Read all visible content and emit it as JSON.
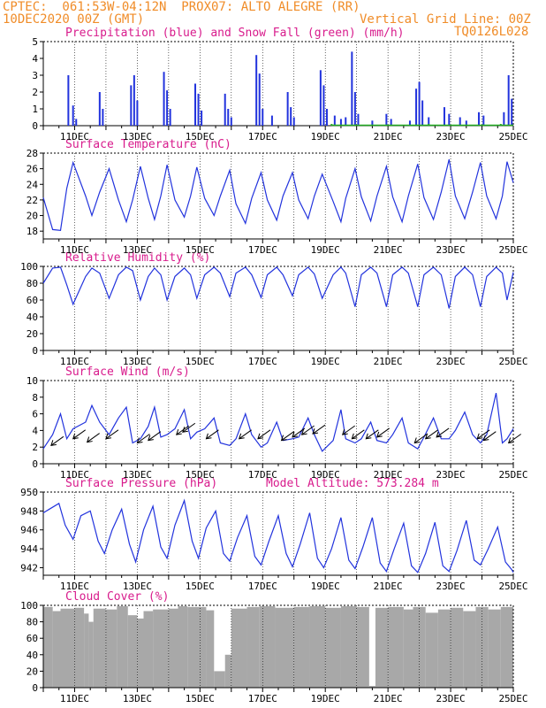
{
  "header": {
    "line1": "CPTEC:  061:53W-04:12N  PROX07: ALTO ALEGRE (RR)",
    "line2": "10DEC2020 00Z (GMT)",
    "grid_note": "Vertical Grid Line: 00Z",
    "code": "TQ0126L028"
  },
  "colors": {
    "header": "#f08c28",
    "title": "#d81b8c",
    "line": "#2233dd",
    "snow": "#22aa22",
    "cloud": "#a8a8a8"
  },
  "x_dates": [
    "11DEC",
    "13DEC",
    "15DEC",
    "17DEC",
    "19DEC",
    "21DEC",
    "23DEC",
    "25DEC"
  ],
  "chart_data": [
    {
      "type": "bar",
      "title": "Precipitation (blue) and Snow Fall (green) (mm/h)",
      "x_unit": "days since 10DEC2020 00Z",
      "ylim": [
        0,
        5
      ],
      "yticks": [
        0,
        1,
        2,
        3,
        4,
        5
      ],
      "series": [
        {
          "name": "Precipitation",
          "points": [
            [
              0.8,
              3.0
            ],
            [
              0.95,
              1.2
            ],
            [
              1.05,
              0.4
            ],
            [
              1.8,
              2.0
            ],
            [
              1.9,
              1.0
            ],
            [
              2.8,
              2.4
            ],
            [
              2.9,
              3.0
            ],
            [
              3.0,
              1.5
            ],
            [
              3.85,
              3.2
            ],
            [
              3.95,
              2.1
            ],
            [
              4.05,
              1.0
            ],
            [
              4.85,
              2.5
            ],
            [
              4.95,
              1.9
            ],
            [
              5.05,
              0.9
            ],
            [
              5.8,
              1.9
            ],
            [
              5.9,
              1.0
            ],
            [
              6.0,
              0.5
            ],
            [
              6.8,
              4.2
            ],
            [
              6.9,
              3.1
            ],
            [
              7.0,
              1.0
            ],
            [
              7.3,
              0.6
            ],
            [
              7.8,
              2.0
            ],
            [
              7.9,
              1.1
            ],
            [
              8.0,
              0.5
            ],
            [
              8.85,
              3.3
            ],
            [
              8.95,
              2.4
            ],
            [
              9.05,
              1.0
            ],
            [
              9.3,
              0.6
            ],
            [
              9.5,
              0.4
            ],
            [
              9.65,
              0.5
            ],
            [
              9.85,
              4.4
            ],
            [
              9.95,
              2.0
            ],
            [
              10.05,
              0.7
            ],
            [
              10.5,
              0.3
            ],
            [
              10.95,
              0.7
            ],
            [
              11.1,
              0.4
            ],
            [
              11.7,
              0.3
            ],
            [
              11.9,
              2.2
            ],
            [
              12.0,
              2.6
            ],
            [
              12.1,
              1.5
            ],
            [
              12.3,
              0.5
            ],
            [
              12.8,
              1.1
            ],
            [
              12.95,
              0.7
            ],
            [
              13.3,
              0.5
            ],
            [
              13.5,
              0.3
            ],
            [
              13.9,
              0.8
            ],
            [
              14.05,
              0.6
            ],
            [
              14.7,
              0.8
            ],
            [
              14.85,
              3.0
            ],
            [
              14.95,
              1.6
            ]
          ]
        },
        {
          "name": "Snow Fall",
          "points": [
            [
              9.2,
              0.05
            ],
            [
              12.3,
              0.05
            ],
            [
              14.6,
              0.05
            ]
          ]
        }
      ]
    },
    {
      "type": "line",
      "title": "Surface Temperature (nC)",
      "ylim": [
        17,
        28
      ],
      "yticks": [
        18,
        20,
        22,
        24,
        26,
        28
      ],
      "x": [
        0,
        0.3,
        0.55,
        0.75,
        0.95,
        1.35,
        1.55,
        1.8,
        2.1,
        2.4,
        2.65,
        2.85,
        3.1,
        3.35,
        3.55,
        3.75,
        3.95,
        4.2,
        4.5,
        4.7,
        4.9,
        5.15,
        5.45,
        5.65,
        5.95,
        6.15,
        6.45,
        6.65,
        6.95,
        7.15,
        7.45,
        7.65,
        7.95,
        8.15,
        8.45,
        8.65,
        8.9,
        9.25,
        9.5,
        9.65,
        9.95,
        10.15,
        10.45,
        10.65,
        10.95,
        11.15,
        11.45,
        11.65,
        11.95,
        12.15,
        12.45,
        12.7,
        12.95,
        13.15,
        13.45,
        13.7,
        13.95,
        14.15,
        14.45,
        14.65,
        14.8,
        15.0
      ],
      "y": [
        22.3,
        18.2,
        18.1,
        23.5,
        26.8,
        22.5,
        20.0,
        23.0,
        26.0,
        22.0,
        19.2,
        22.0,
        26.3,
        22.2,
        19.5,
        22.5,
        26.5,
        22.0,
        19.8,
        22.5,
        26.2,
        22.2,
        20.0,
        22.5,
        25.8,
        21.5,
        19.0,
        22.2,
        25.5,
        22.0,
        19.4,
        22.5,
        25.5,
        22.0,
        19.6,
        22.5,
        25.3,
        21.8,
        19.2,
        22.2,
        26.0,
        22.4,
        19.3,
        22.5,
        26.3,
        22.4,
        19.2,
        22.5,
        26.6,
        22.3,
        19.5,
        23.0,
        27.2,
        22.5,
        19.6,
        23.0,
        26.8,
        22.5,
        19.6,
        22.5,
        26.9,
        24.2
      ]
    },
    {
      "type": "line",
      "title": "Relative Humidity (%)",
      "ylim": [
        0,
        100
      ],
      "yticks": [
        0,
        20,
        40,
        60,
        80,
        100
      ],
      "x": [
        0,
        0.3,
        0.55,
        0.75,
        0.95,
        1.35,
        1.55,
        1.8,
        2.1,
        2.4,
        2.65,
        2.85,
        3.1,
        3.35,
        3.55,
        3.75,
        3.95,
        4.2,
        4.5,
        4.7,
        4.9,
        5.15,
        5.45,
        5.65,
        5.95,
        6.15,
        6.45,
        6.65,
        6.95,
        7.15,
        7.45,
        7.65,
        7.95,
        8.15,
        8.45,
        8.65,
        8.9,
        9.25,
        9.5,
        9.65,
        9.95,
        10.15,
        10.45,
        10.65,
        10.95,
        11.15,
        11.45,
        11.65,
        11.95,
        12.15,
        12.45,
        12.7,
        12.95,
        13.15,
        13.45,
        13.7,
        13.95,
        14.15,
        14.45,
        14.65,
        14.8,
        15.0
      ],
      "y": [
        80,
        98,
        99,
        78,
        55,
        88,
        98,
        92,
        62,
        90,
        99,
        95,
        60,
        88,
        98,
        90,
        60,
        88,
        98,
        90,
        62,
        90,
        99,
        92,
        64,
        92,
        99,
        90,
        63,
        90,
        99,
        90,
        65,
        90,
        99,
        91,
        62,
        90,
        99,
        92,
        52,
        90,
        99,
        92,
        52,
        90,
        99,
        92,
        52,
        90,
        99,
        90,
        50,
        88,
        99,
        90,
        52,
        88,
        99,
        92,
        60,
        93
      ]
    },
    {
      "type": "line",
      "title": "Surface Wind (m/s)",
      "ylim": [
        0,
        10
      ],
      "yticks": [
        0,
        2,
        4,
        6,
        8,
        10
      ],
      "x": [
        0,
        0.3,
        0.55,
        0.75,
        0.95,
        1.35,
        1.55,
        1.8,
        2.1,
        2.4,
        2.65,
        2.85,
        3.1,
        3.35,
        3.55,
        3.75,
        3.95,
        4.2,
        4.5,
        4.7,
        4.9,
        5.15,
        5.45,
        5.65,
        5.95,
        6.15,
        6.45,
        6.65,
        6.95,
        7.15,
        7.45,
        7.65,
        7.95,
        8.15,
        8.45,
        8.65,
        8.9,
        9.25,
        9.5,
        9.65,
        9.95,
        10.15,
        10.45,
        10.65,
        10.95,
        11.15,
        11.45,
        11.65,
        11.95,
        12.15,
        12.45,
        12.7,
        12.95,
        13.15,
        13.45,
        13.7,
        13.95,
        14.15,
        14.45,
        14.65,
        14.8,
        15.0
      ],
      "y": [
        1.8,
        3.5,
        6.0,
        3.0,
        4.2,
        5.0,
        7.0,
        5.0,
        3.5,
        5.5,
        6.8,
        2.5,
        3.0,
        4.5,
        6.8,
        3.2,
        3.5,
        4.2,
        6.5,
        3.0,
        3.8,
        4.2,
        5.5,
        2.5,
        2.2,
        3.0,
        6.0,
        3.5,
        2.0,
        2.5,
        5.0,
        2.8,
        3.0,
        3.2,
        5.5,
        3.5,
        1.5,
        2.8,
        6.5,
        3.0,
        2.5,
        3.0,
        5.0,
        2.8,
        2.5,
        3.5,
        5.5,
        2.5,
        1.8,
        3.2,
        5.5,
        3.0,
        3.0,
        4.0,
        6.2,
        3.5,
        2.5,
        3.5,
        8.5,
        2.5,
        3.0,
        4.2
      ],
      "arrows": [
        [
          0.25,
          2.2
        ],
        [
          0.95,
          3.0
        ],
        [
          1.4,
          2.6
        ],
        [
          2.0,
          3.0
        ],
        [
          3.0,
          2.5
        ],
        [
          3.35,
          2.8
        ],
        [
          4.25,
          3.5
        ],
        [
          4.45,
          3.8
        ],
        [
          5.2,
          3.0
        ],
        [
          6.25,
          3.0
        ],
        [
          6.85,
          3.0
        ],
        [
          7.6,
          2.8
        ],
        [
          7.95,
          3.2
        ],
        [
          8.25,
          3.5
        ],
        [
          8.6,
          3.6
        ],
        [
          9.55,
          3.5
        ],
        [
          9.85,
          3.0
        ],
        [
          10.3,
          3.0
        ],
        [
          10.65,
          3.2
        ],
        [
          11.85,
          2.5
        ],
        [
          12.2,
          3.0
        ],
        [
          12.55,
          3.2
        ],
        [
          13.85,
          3.0
        ],
        [
          14.05,
          2.8
        ],
        [
          14.85,
          2.5
        ]
      ]
    },
    {
      "type": "line",
      "title": "Surface Pressure (hPa)",
      "annotation": "Model Altitude: 573.284 m",
      "ylim": [
        941.2,
        950
      ],
      "yticks": [
        942,
        944,
        946,
        948,
        950
      ],
      "x": [
        0,
        0.2,
        0.5,
        0.7,
        0.95,
        1.2,
        1.5,
        1.75,
        1.95,
        2.2,
        2.5,
        2.75,
        2.95,
        3.2,
        3.5,
        3.75,
        3.95,
        4.2,
        4.5,
        4.75,
        4.95,
        5.2,
        5.5,
        5.75,
        5.95,
        6.2,
        6.5,
        6.75,
        6.95,
        7.2,
        7.5,
        7.75,
        7.95,
        8.2,
        8.5,
        8.75,
        8.95,
        9.2,
        9.5,
        9.75,
        9.95,
        10.2,
        10.5,
        10.75,
        10.95,
        11.2,
        11.5,
        11.75,
        11.95,
        12.2,
        12.5,
        12.75,
        12.95,
        13.2,
        13.5,
        13.75,
        13.95,
        14.2,
        14.5,
        14.75,
        14.95,
        15.0
      ],
      "y": [
        947.8,
        948.2,
        948.8,
        946.5,
        945.0,
        947.5,
        948.0,
        944.8,
        943.5,
        946.0,
        948.2,
        944.5,
        942.6,
        946.0,
        948.5,
        944.2,
        943.0,
        946.5,
        949.1,
        944.8,
        943.0,
        946.2,
        948.0,
        943.5,
        942.7,
        945.2,
        947.5,
        943.2,
        942.3,
        944.8,
        947.5,
        943.5,
        942.1,
        944.5,
        947.8,
        943.0,
        942.0,
        944.0,
        947.3,
        942.8,
        941.9,
        944.2,
        947.3,
        942.5,
        941.6,
        944.0,
        946.7,
        942.2,
        941.5,
        943.5,
        946.8,
        942.2,
        941.6,
        943.8,
        947.0,
        942.8,
        942.3,
        944.0,
        946.3,
        942.6,
        941.8,
        941.5
      ]
    },
    {
      "type": "bar",
      "title": "Cloud Cover (%)",
      "ylim": [
        0,
        100
      ],
      "yticks": [
        0,
        20,
        40,
        60,
        80,
        100
      ],
      "segments": [
        [
          0,
          0.3,
          98
        ],
        [
          0.3,
          0.55,
          93
        ],
        [
          0.55,
          1.0,
          96
        ],
        [
          1.0,
          1.3,
          97
        ],
        [
          1.3,
          1.45,
          90
        ],
        [
          1.45,
          1.6,
          80
        ],
        [
          1.6,
          2.0,
          96
        ],
        [
          2.0,
          2.35,
          95
        ],
        [
          2.35,
          2.7,
          99
        ],
        [
          2.7,
          3.0,
          88
        ],
        [
          3.0,
          3.2,
          84
        ],
        [
          3.2,
          3.5,
          93
        ],
        [
          3.5,
          4.0,
          95
        ],
        [
          4.0,
          4.3,
          96
        ],
        [
          4.3,
          4.6,
          99
        ],
        [
          4.6,
          5.2,
          98
        ],
        [
          5.2,
          5.45,
          94
        ],
        [
          5.45,
          5.8,
          20
        ],
        [
          5.8,
          6.0,
          40
        ],
        [
          6.0,
          6.5,
          96
        ],
        [
          6.5,
          6.9,
          98
        ],
        [
          6.9,
          7.4,
          99
        ],
        [
          7.4,
          8.0,
          97
        ],
        [
          8.0,
          8.5,
          98
        ],
        [
          8.5,
          9.0,
          99
        ],
        [
          9.0,
          9.5,
          97
        ],
        [
          9.5,
          10.0,
          99
        ],
        [
          10.0,
          10.4,
          98
        ],
        [
          10.4,
          10.6,
          2
        ],
        [
          10.6,
          11.0,
          97
        ],
        [
          11.0,
          11.5,
          98
        ],
        [
          11.5,
          11.8,
          95
        ],
        [
          11.8,
          12.2,
          98
        ],
        [
          12.2,
          12.6,
          91
        ],
        [
          12.6,
          13.0,
          95
        ],
        [
          13.0,
          13.4,
          97
        ],
        [
          13.4,
          13.8,
          93
        ],
        [
          13.8,
          14.2,
          98
        ],
        [
          14.2,
          14.6,
          95
        ],
        [
          14.6,
          15.0,
          98
        ]
      ]
    }
  ]
}
